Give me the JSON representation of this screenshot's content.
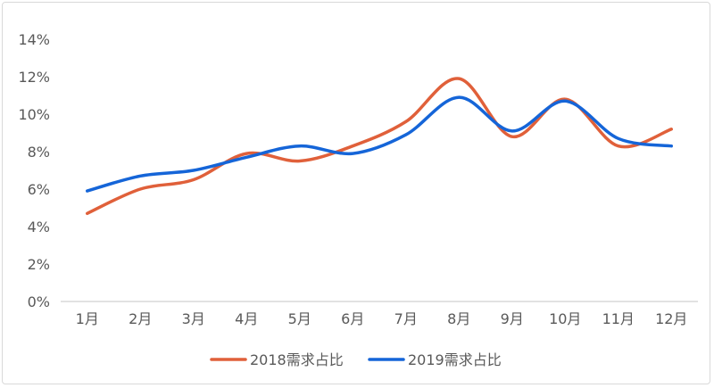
{
  "chart_data": {
    "type": "line",
    "title": "",
    "xlabel": "",
    "ylabel": "",
    "categories": [
      "1月",
      "2月",
      "3月",
      "4月",
      "5月",
      "6月",
      "7月",
      "8月",
      "9月",
      "10月",
      "11月",
      "12月"
    ],
    "y_ticks": [
      "0%",
      "2%",
      "4%",
      "6%",
      "8%",
      "10%",
      "12%",
      "14%"
    ],
    "ylim": [
      0,
      14
    ],
    "grid": false,
    "legend_position": "bottom",
    "series": [
      {
        "name": "2018需求占比",
        "color": "#e0603a",
        "values": [
          4.7,
          6.0,
          6.5,
          7.9,
          7.5,
          8.3,
          9.6,
          11.9,
          8.8,
          10.8,
          8.3,
          9.2
        ]
      },
      {
        "name": "2019需求占比",
        "color": "#1565d8",
        "values": [
          5.9,
          6.7,
          7.0,
          7.7,
          8.3,
          7.9,
          8.9,
          10.9,
          9.1,
          10.7,
          8.7,
          8.3
        ]
      }
    ]
  }
}
